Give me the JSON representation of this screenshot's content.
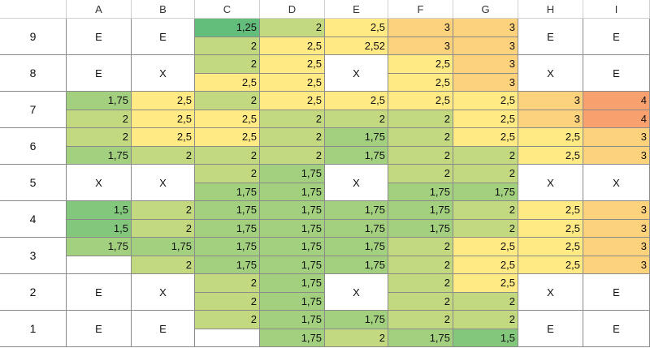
{
  "columns": [
    "A",
    "B",
    "C",
    "D",
    "E",
    "F",
    "G",
    "H",
    "I"
  ],
  "rows": [
    {
      "label": "9",
      "cells": [
        {
          "text": "E"
        },
        {
          "text": "E"
        },
        {
          "values": [
            "1,25",
            "2"
          ]
        },
        {
          "values": [
            "2",
            "2,5"
          ]
        },
        {
          "values": [
            "2,5",
            "2,52"
          ]
        },
        {
          "values": [
            "3",
            "3"
          ]
        },
        {
          "values": [
            "3",
            "3"
          ]
        },
        {
          "text": "E"
        },
        {
          "text": "E"
        }
      ]
    },
    {
      "label": "8",
      "cells": [
        {
          "text": "E"
        },
        {
          "text": "X"
        },
        {
          "values": [
            "2",
            "2,5"
          ]
        },
        {
          "values": [
            "2,5",
            "2,5"
          ]
        },
        {
          "text": "X"
        },
        {
          "values": [
            "2,5",
            "2,5"
          ]
        },
        {
          "values": [
            "3",
            "3"
          ]
        },
        {
          "text": "X"
        },
        {
          "text": "E"
        }
      ]
    },
    {
      "label": "7",
      "cells": [
        {
          "values": [
            "1,75",
            "2"
          ]
        },
        {
          "values": [
            "2,5",
            "2,5"
          ]
        },
        {
          "values": [
            "2",
            "2,5"
          ]
        },
        {
          "values": [
            "2,5",
            "2"
          ]
        },
        {
          "values": [
            "2,5",
            "2"
          ]
        },
        {
          "values": [
            "2,5",
            "2"
          ]
        },
        {
          "values": [
            "2,5",
            "2,5"
          ]
        },
        {
          "values": [
            "3",
            "3"
          ]
        },
        {
          "values": [
            "4",
            "4"
          ]
        }
      ]
    },
    {
      "label": "6",
      "cells": [
        {
          "values": [
            "2",
            "1,75"
          ]
        },
        {
          "values": [
            "2,5",
            "2"
          ]
        },
        {
          "values": [
            "2,5",
            "2"
          ]
        },
        {
          "values": [
            "2",
            "2"
          ]
        },
        {
          "values": [
            "1,75",
            "1,75"
          ]
        },
        {
          "values": [
            "2",
            "2"
          ]
        },
        {
          "values": [
            "2,5",
            "2"
          ]
        },
        {
          "values": [
            "2,5",
            "2,5"
          ]
        },
        {
          "values": [
            "3",
            "3"
          ]
        }
      ]
    },
    {
      "label": "5",
      "cells": [
        {
          "text": "X"
        },
        {
          "text": "X"
        },
        {
          "values": [
            "2",
            "1,75"
          ]
        },
        {
          "values": [
            "1,75",
            "1,75"
          ]
        },
        {
          "text": "X"
        },
        {
          "values": [
            "2",
            "1,75"
          ]
        },
        {
          "values": [
            "2",
            "1,75"
          ]
        },
        {
          "text": "X"
        },
        {
          "text": "X"
        }
      ]
    },
    {
      "label": "4",
      "cells": [
        {
          "values": [
            "1,5",
            "1,5"
          ]
        },
        {
          "values": [
            "2",
            "2"
          ]
        },
        {
          "values": [
            "1,75",
            "1,75"
          ]
        },
        {
          "values": [
            "1,75",
            "1,75"
          ]
        },
        {
          "values": [
            "1,75",
            "1,75"
          ]
        },
        {
          "values": [
            "1,75",
            "1,75"
          ]
        },
        {
          "values": [
            "2",
            "2"
          ]
        },
        {
          "values": [
            "2,5",
            "2,5"
          ]
        },
        {
          "values": [
            "3",
            "3"
          ]
        }
      ]
    },
    {
      "label": "3",
      "cells": [
        {
          "values": [
            "1,75",
            null
          ]
        },
        {
          "values": [
            "1,75",
            "2"
          ]
        },
        {
          "values": [
            "1,75",
            "1,75"
          ]
        },
        {
          "values": [
            "1,75",
            "1,75"
          ]
        },
        {
          "values": [
            "1,75",
            "1,75"
          ]
        },
        {
          "values": [
            "2",
            "2"
          ]
        },
        {
          "values": [
            "2,5",
            "2,5"
          ]
        },
        {
          "values": [
            "2,5",
            "2,5"
          ]
        },
        {
          "values": [
            "3",
            "3"
          ]
        }
      ]
    },
    {
      "label": "2",
      "cells": [
        {
          "text": "E"
        },
        {
          "text": "X"
        },
        {
          "values": [
            "2",
            "2"
          ]
        },
        {
          "values": [
            "1,75",
            "1,75"
          ]
        },
        {
          "text": "X"
        },
        {
          "values": [
            "2",
            "2"
          ]
        },
        {
          "values": [
            "2,5",
            "2"
          ]
        },
        {
          "text": "X"
        },
        {
          "text": "E"
        }
      ]
    },
    {
      "label": "1",
      "cells": [
        {
          "text": "E"
        },
        {
          "text": "E"
        },
        {
          "values": [
            "2",
            null
          ]
        },
        {
          "values": [
            "1,75",
            "1,75"
          ]
        },
        {
          "values": [
            "1,75",
            "2"
          ]
        },
        {
          "values": [
            "2",
            "1,75"
          ]
        },
        {
          "values": [
            "2",
            "1,5"
          ]
        },
        {
          "text": "E"
        },
        {
          "text": "E"
        }
      ]
    }
  ]
}
